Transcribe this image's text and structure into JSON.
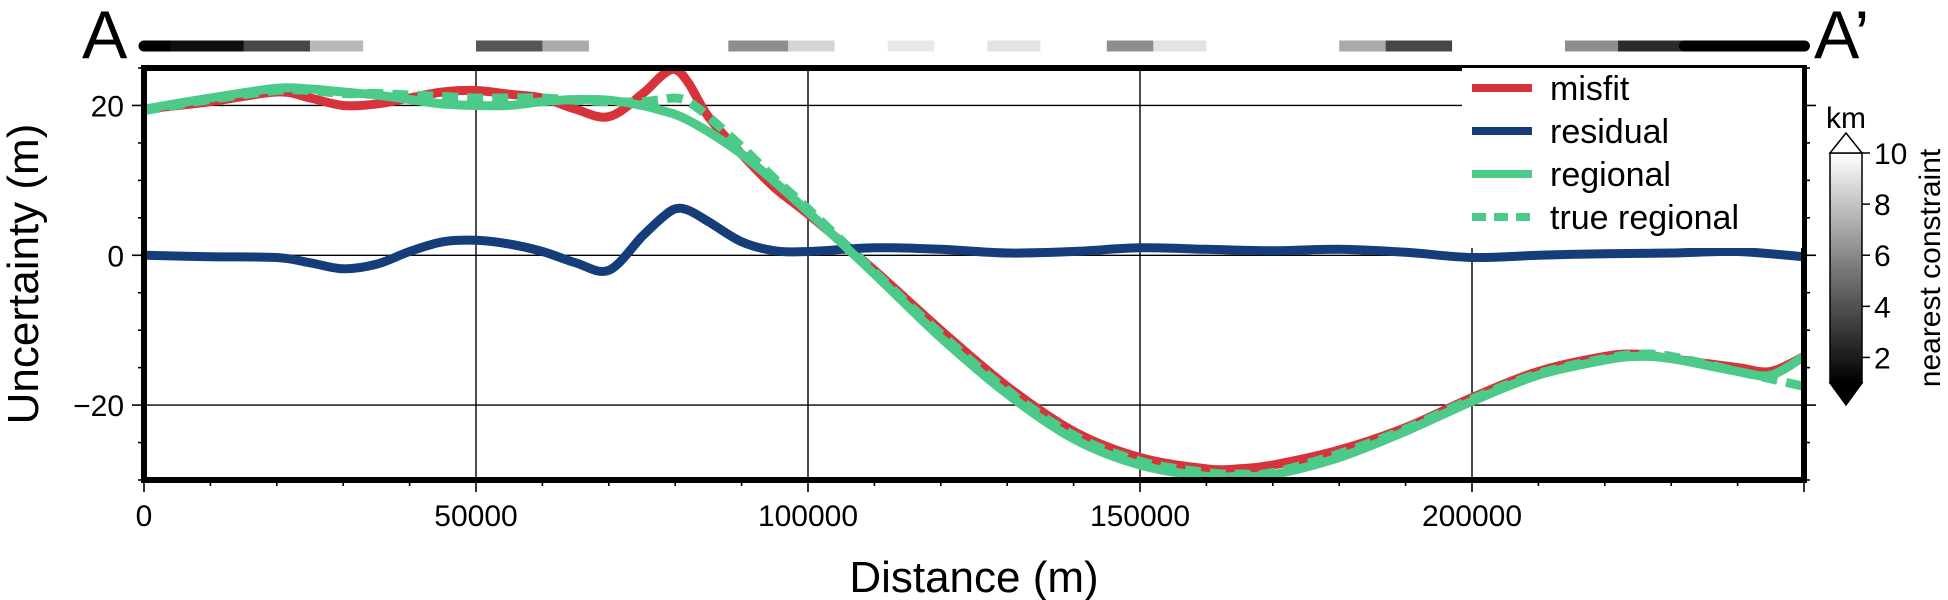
{
  "profile": {
    "start_label": "A",
    "end_label": "A’"
  },
  "chart_data": {
    "type": "line",
    "xlabel": "Distance (m)",
    "ylabel": "Uncertainty (m)",
    "xlim": [
      0,
      250000
    ],
    "ylim": [
      -30,
      25
    ],
    "xticks": [
      0,
      50000,
      100000,
      150000,
      200000
    ],
    "xtick_labels": [
      "0",
      "50000",
      "100000",
      "150000",
      "200000"
    ],
    "yticks": [
      -20,
      0,
      20
    ],
    "ytick_labels": [
      "−20",
      "0",
      "20"
    ],
    "grid": true,
    "legend_position": "top-right",
    "series": [
      {
        "name": "misfit",
        "color": "#d7333a",
        "style": "solid",
        "x": [
          0,
          10000,
          20000,
          25000,
          30000,
          35000,
          40000,
          45000,
          50000,
          55000,
          60000,
          65000,
          70000,
          75000,
          78000,
          80000,
          82000,
          85000,
          90000,
          95000,
          100000,
          110000,
          120000,
          130000,
          140000,
          150000,
          160000,
          165000,
          170000,
          180000,
          190000,
          200000,
          210000,
          220000,
          225000,
          230000,
          240000,
          245000,
          250000
        ],
        "y": [
          19.5,
          20.5,
          21.8,
          21.0,
          20.0,
          20.2,
          21.0,
          21.8,
          22.0,
          21.5,
          21.0,
          19.5,
          18.5,
          21.5,
          24.0,
          24.8,
          23.0,
          18.5,
          13.5,
          9.0,
          5.5,
          -2.0,
          -10.0,
          -17.5,
          -23.5,
          -27.0,
          -28.5,
          -28.5,
          -28.0,
          -26.0,
          -23.0,
          -19.0,
          -15.5,
          -13.5,
          -13.2,
          -13.8,
          -15.0,
          -15.5,
          -13.5
        ]
      },
      {
        "name": "residual",
        "color": "#143d7a",
        "style": "solid",
        "x": [
          0,
          10000,
          20000,
          25000,
          30000,
          35000,
          40000,
          45000,
          50000,
          55000,
          60000,
          65000,
          70000,
          75000,
          78000,
          80000,
          82000,
          85000,
          90000,
          95000,
          100000,
          110000,
          120000,
          130000,
          140000,
          150000,
          160000,
          170000,
          180000,
          190000,
          200000,
          210000,
          220000,
          230000,
          240000,
          250000
        ],
        "y": [
          0.0,
          -0.2,
          -0.3,
          -1.0,
          -1.8,
          -1.2,
          0.5,
          1.8,
          2.0,
          1.5,
          0.5,
          -1.0,
          -2.0,
          2.5,
          5.0,
          6.2,
          6.0,
          4.5,
          1.8,
          0.6,
          0.5,
          1.0,
          0.8,
          0.3,
          0.5,
          1.0,
          0.8,
          0.6,
          0.8,
          0.4,
          -0.3,
          0.0,
          0.2,
          0.3,
          0.5,
          -0.2
        ]
      },
      {
        "name": "regional",
        "color": "#4cca8a",
        "style": "solid",
        "x": [
          0,
          10000,
          20000,
          25000,
          30000,
          35000,
          40000,
          45000,
          50000,
          55000,
          60000,
          65000,
          70000,
          75000,
          78000,
          80000,
          82000,
          85000,
          90000,
          95000,
          100000,
          110000,
          120000,
          130000,
          140000,
          150000,
          160000,
          165000,
          170000,
          180000,
          190000,
          200000,
          210000,
          220000,
          225000,
          230000,
          240000,
          245000,
          250000
        ],
        "y": [
          19.5,
          21.0,
          22.3,
          22.2,
          21.8,
          21.4,
          20.8,
          20.2,
          20.0,
          20.0,
          20.5,
          20.8,
          20.7,
          20.0,
          19.3,
          18.8,
          18.0,
          16.5,
          13.5,
          9.8,
          5.8,
          -2.5,
          -11.0,
          -18.5,
          -24.5,
          -28.0,
          -29.5,
          -29.5,
          -29.3,
          -27.0,
          -23.5,
          -19.5,
          -16.0,
          -14.0,
          -13.5,
          -13.8,
          -15.5,
          -16.0,
          -13.5
        ]
      },
      {
        "name": "true regional",
        "color": "#4cca8a",
        "style": "dashed",
        "x": [
          0,
          10000,
          20000,
          25000,
          30000,
          35000,
          40000,
          45000,
          50000,
          55000,
          60000,
          65000,
          70000,
          75000,
          78000,
          80000,
          82000,
          85000,
          90000,
          95000,
          100000,
          110000,
          120000,
          130000,
          140000,
          150000,
          160000,
          165000,
          170000,
          180000,
          190000,
          200000,
          210000,
          220000,
          225000,
          230000,
          240000,
          245000,
          250000
        ],
        "y": [
          19.3,
          20.8,
          22.0,
          22.0,
          21.6,
          21.6,
          21.4,
          21.2,
          21.0,
          21.0,
          21.0,
          20.7,
          20.5,
          20.5,
          20.8,
          21.0,
          20.5,
          18.5,
          14.5,
          10.2,
          6.2,
          -2.2,
          -10.5,
          -18.0,
          -24.0,
          -27.5,
          -29.0,
          -29.2,
          -29.0,
          -26.5,
          -23.2,
          -19.2,
          -15.8,
          -13.8,
          -13.2,
          -13.5,
          -15.5,
          -16.5,
          -17.5
        ]
      }
    ]
  },
  "colorbar": {
    "label": "nearest constraint",
    "unit": "km",
    "range": [
      1,
      10
    ],
    "ticks": [
      2,
      4,
      6,
      8,
      10
    ],
    "tick_labels": [
      "2",
      "4",
      "6",
      "8",
      "10"
    ]
  },
  "constraint_bar": {
    "title": "",
    "segments": [
      {
        "x0": 0,
        "x1": 4000,
        "v": 1
      },
      {
        "x0": 4000,
        "x1": 15000,
        "v": 1.5
      },
      {
        "x0": 15000,
        "x1": 25000,
        "v": 3.5
      },
      {
        "x0": 25000,
        "x1": 33000,
        "v": 7.5
      },
      {
        "x0": 33000,
        "x1": 50000,
        "v": 10
      },
      {
        "x0": 50000,
        "x1": 60000,
        "v": 4
      },
      {
        "x0": 60000,
        "x1": 67000,
        "v": 7
      },
      {
        "x0": 67000,
        "x1": 88000,
        "v": 10
      },
      {
        "x0": 88000,
        "x1": 97000,
        "v": 6
      },
      {
        "x0": 97000,
        "x1": 104000,
        "v": 8.5
      },
      {
        "x0": 104000,
        "x1": 112000,
        "v": 10
      },
      {
        "x0": 112000,
        "x1": 119000,
        "v": 9.2
      },
      {
        "x0": 119000,
        "x1": 127000,
        "v": 10
      },
      {
        "x0": 127000,
        "x1": 135000,
        "v": 9
      },
      {
        "x0": 135000,
        "x1": 145000,
        "v": 10
      },
      {
        "x0": 145000,
        "x1": 152000,
        "v": 6
      },
      {
        "x0": 152000,
        "x1": 160000,
        "v": 9
      },
      {
        "x0": 160000,
        "x1": 180000,
        "v": 10
      },
      {
        "x0": 180000,
        "x1": 187000,
        "v": 7
      },
      {
        "x0": 187000,
        "x1": 197000,
        "v": 3.5
      },
      {
        "x0": 197000,
        "x1": 214000,
        "v": 10
      },
      {
        "x0": 214000,
        "x1": 222000,
        "v": 6
      },
      {
        "x0": 222000,
        "x1": 232000,
        "v": 2.5
      },
      {
        "x0": 232000,
        "x1": 250000,
        "v": 1
      }
    ]
  }
}
